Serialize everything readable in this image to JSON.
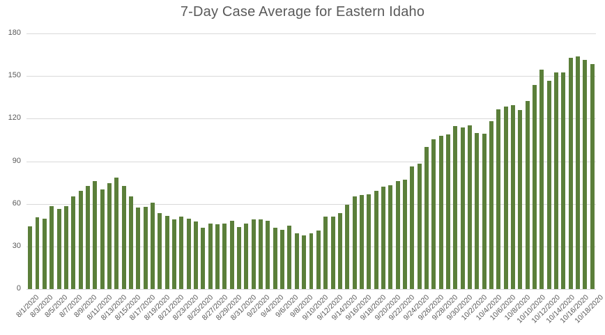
{
  "chart_data": {
    "type": "bar",
    "title": "7-Day Case Average for Eastern Idaho",
    "xlabel": "",
    "ylabel": "",
    "ylim": [
      0,
      180
    ],
    "yticks": [
      0,
      30,
      60,
      90,
      120,
      150,
      180
    ],
    "grid": true,
    "legend": null,
    "bar_color": "#5b7f3a",
    "gridline_color": "#d9d9d9",
    "text_color": "#595959",
    "categories": [
      "8/1/2020",
      "8/2/2020",
      "8/3/2020",
      "8/4/2020",
      "8/5/2020",
      "8/6/2020",
      "8/7/2020",
      "8/8/2020",
      "8/9/2020",
      "8/10/2020",
      "8/11/2020",
      "8/12/2020",
      "8/13/2020",
      "8/14/2020",
      "8/15/2020",
      "8/16/2020",
      "8/17/2020",
      "8/18/2020",
      "8/19/2020",
      "8/20/2020",
      "8/21/2020",
      "8/22/2020",
      "8/23/2020",
      "8/24/2020",
      "8/25/2020",
      "8/26/2020",
      "8/27/2020",
      "8/28/2020",
      "8/29/2020",
      "8/30/2020",
      "8/31/2020",
      "9/1/2020",
      "9/2/2020",
      "9/3/2020",
      "9/4/2020",
      "9/5/2020",
      "9/6/2020",
      "9/7/2020",
      "9/8/2020",
      "9/9/2020",
      "9/10/2020",
      "9/11/2020",
      "9/12/2020",
      "9/13/2020",
      "9/14/2020",
      "9/15/2020",
      "9/16/2020",
      "9/17/2020",
      "9/18/2020",
      "9/19/2020",
      "9/20/2020",
      "9/21/2020",
      "9/22/2020",
      "9/23/2020",
      "9/24/2020",
      "9/25/2020",
      "9/26/2020",
      "9/27/2020",
      "9/28/2020",
      "9/29/2020",
      "9/30/2020",
      "10/1/2020",
      "10/2/2020",
      "10/3/2020",
      "10/4/2020",
      "10/5/2020",
      "10/6/2020",
      "10/7/2020",
      "10/8/2020",
      "10/9/2020",
      "10/10/2020",
      "10/11/2020",
      "10/12/2020",
      "10/13/2020",
      "10/14/2020",
      "10/15/2020",
      "10/16/2020",
      "10/17/2020",
      "10/18/2020"
    ],
    "xtick_labels": [
      "8/1/2020",
      "8/3/2020",
      "8/5/2020",
      "8/7/2020",
      "8/9/2020",
      "8/11/2020",
      "8/13/2020",
      "8/15/2020",
      "8/17/2020",
      "8/19/2020",
      "8/21/2020",
      "8/23/2020",
      "8/25/2020",
      "8/27/2020",
      "8/29/2020",
      "8/31/2020",
      "9/2/2020",
      "9/4/2020",
      "9/6/2020",
      "9/8/2020",
      "9/10/2020",
      "9/12/2020",
      "9/14/2020",
      "9/16/2020",
      "9/18/2020",
      "9/20/2020",
      "9/22/2020",
      "9/24/2020",
      "9/26/2020",
      "9/28/2020",
      "9/30/2020",
      "10/2/2020",
      "10/4/2020",
      "10/6/2020",
      "10/8/2020",
      "10/10/2020",
      "10/12/2020",
      "10/14/2020",
      "10/16/2020",
      "10/18/2020"
    ],
    "values": [
      44,
      50.5,
      49.3,
      58.2,
      56.2,
      58.2,
      65.1,
      69.2,
      72.5,
      75.9,
      70.2,
      74.6,
      78.4,
      72.5,
      65.1,
      57.2,
      57.7,
      60.6,
      53.3,
      51.5,
      49,
      50.8,
      49.5,
      47.4,
      43.4,
      45.9,
      45.4,
      45.9,
      47.9,
      43.9,
      45.9,
      49,
      49,
      47.9,
      43.4,
      41.5,
      44.6,
      39,
      37.7,
      39,
      41,
      50.8,
      50.8,
      53.3,
      59.5,
      65.1,
      66.1,
      66.6,
      69,
      72.2,
      73.2,
      75.8,
      77.1,
      86.4,
      88.4,
      100.3,
      105.5,
      107.7,
      109,
      114.8,
      113.9,
      115.3,
      110,
      109.2,
      118.1,
      126.4,
      128.4,
      129.3,
      125.9,
      132.2,
      143.7,
      154.6,
      146.7,
      152.6,
      152.6,
      162.9,
      163.9,
      161.5,
      158.6
    ]
  }
}
